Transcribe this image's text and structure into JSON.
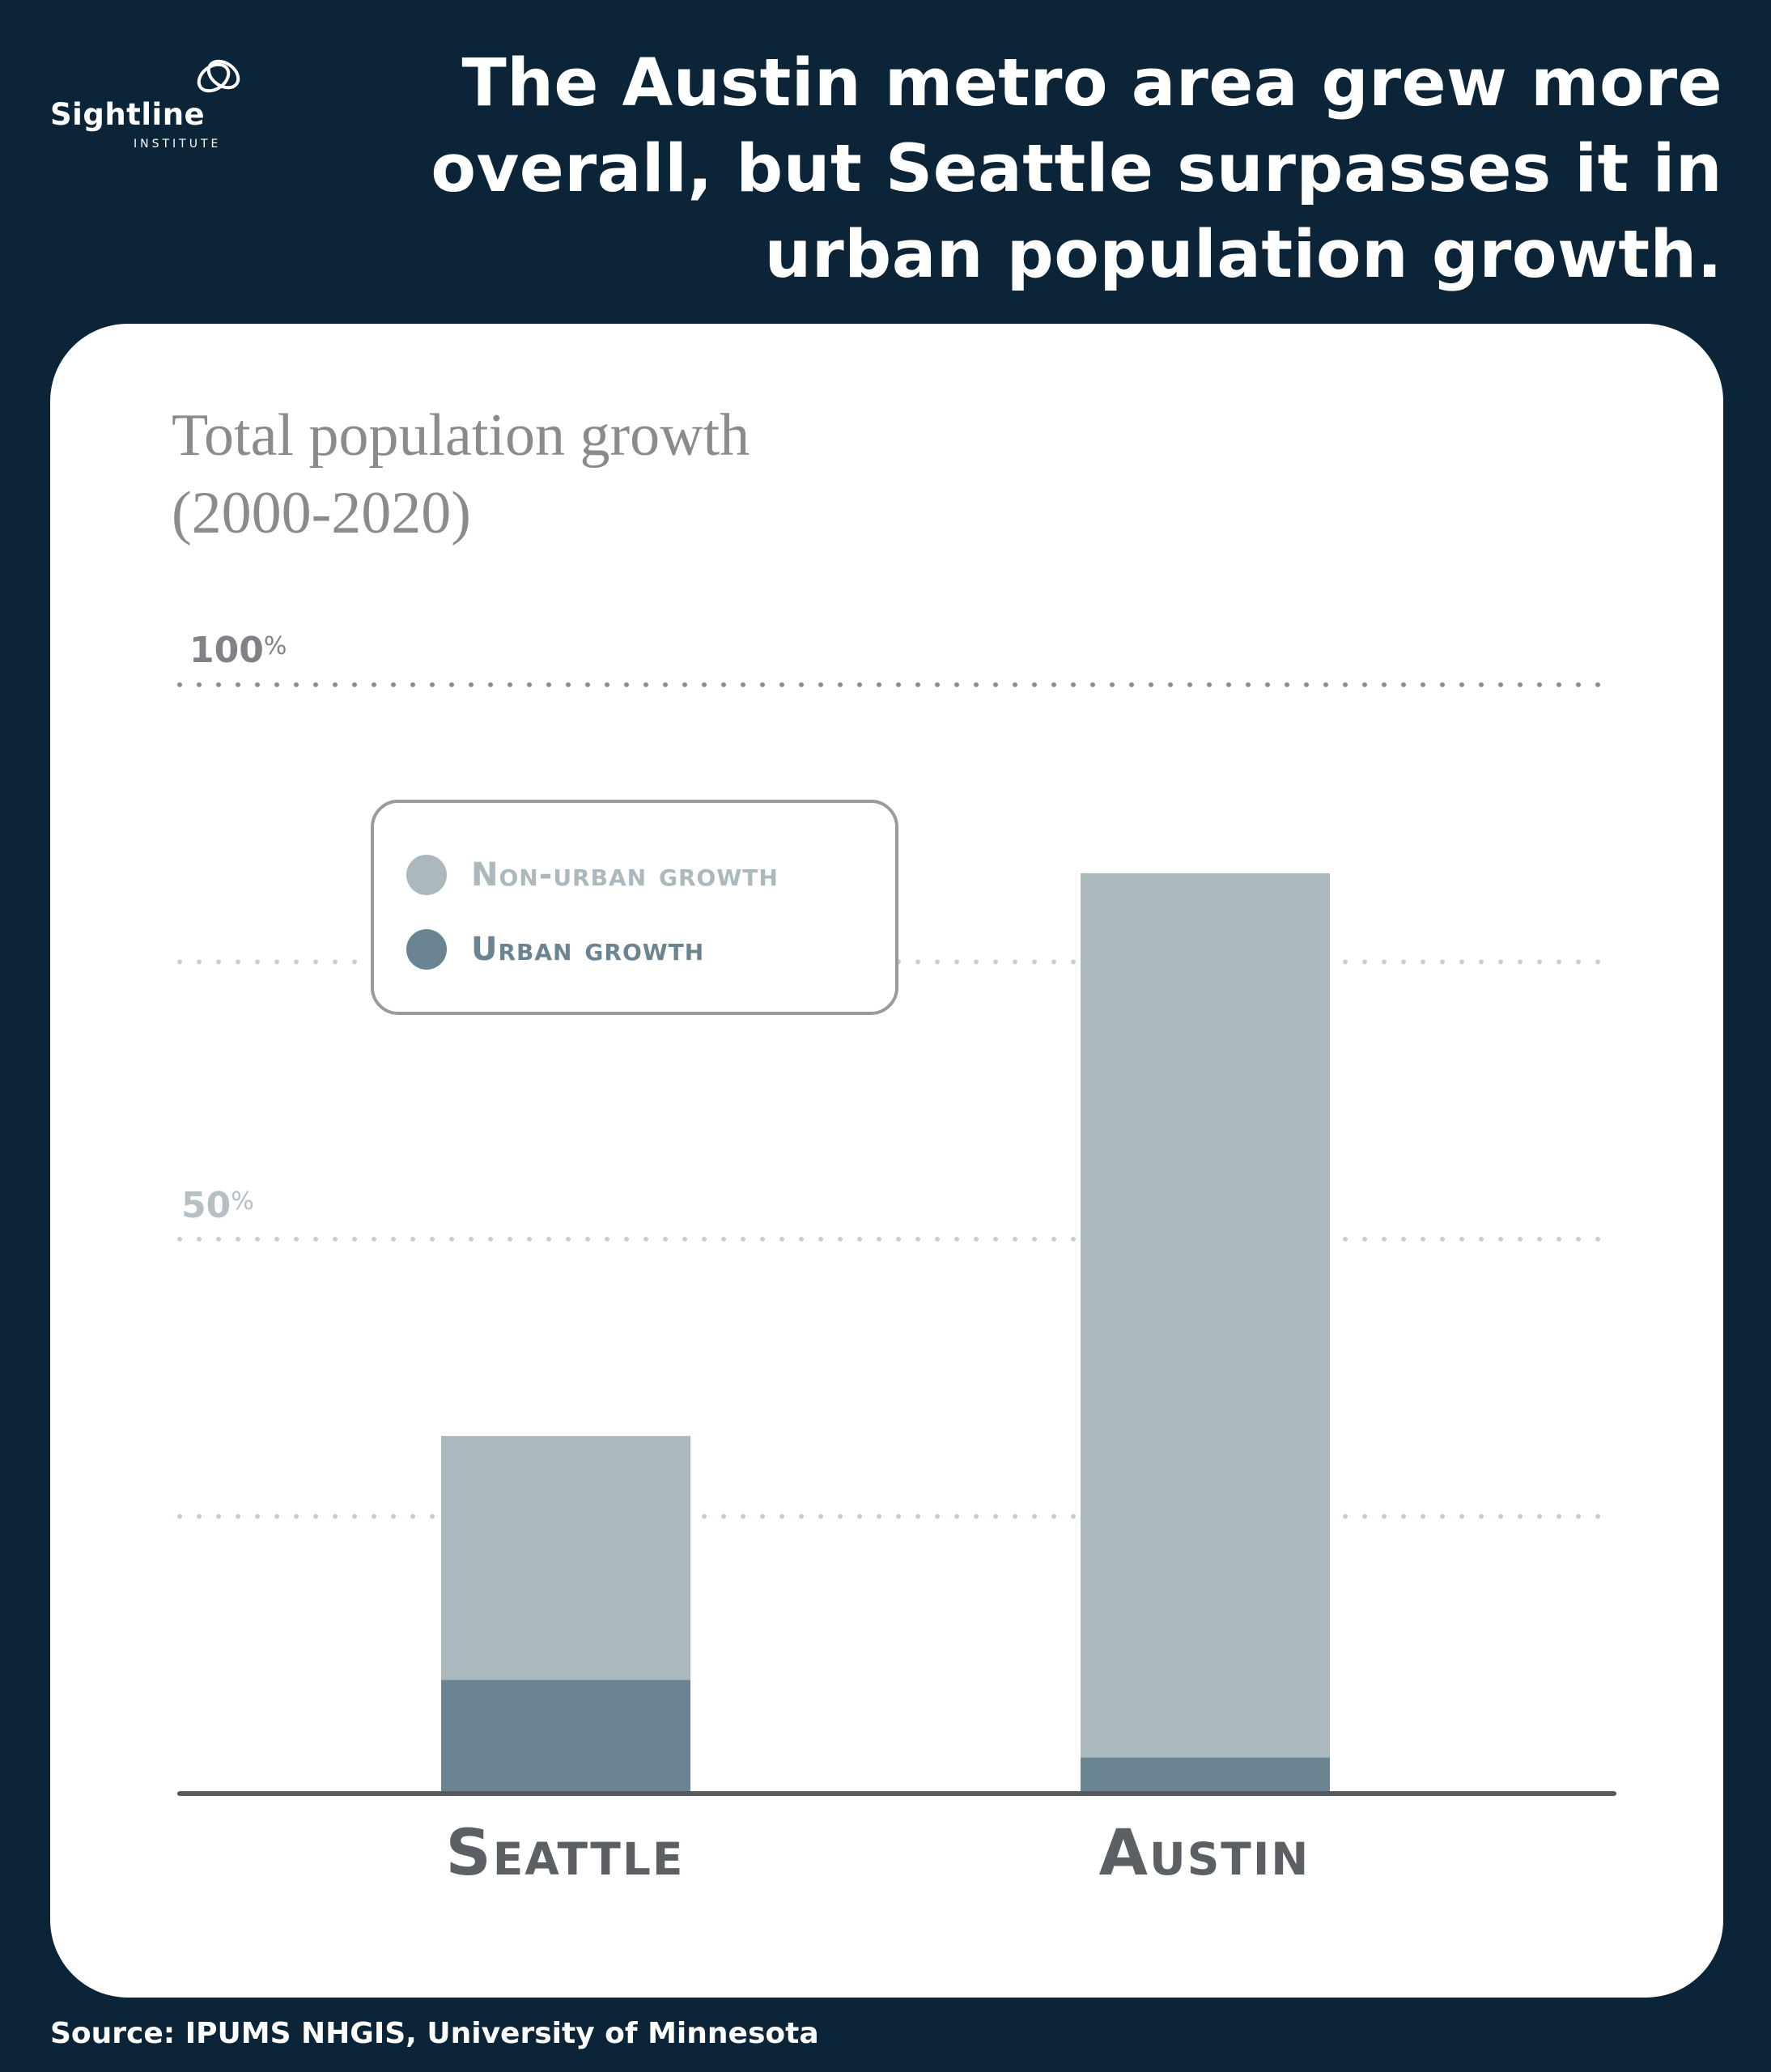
{
  "brand": {
    "logo_word": "Sightline",
    "logo_sub": "INSTITUTE"
  },
  "headline": "The Austin metro area grew more overall, but Seattle surpasses it in urban population growth.",
  "source": "Source: IPUMS NHGIS, University of Minnesota",
  "colors": {
    "background": "#0b2438",
    "card": "#ffffff",
    "non_urban": "#abb8bd",
    "urban": "#6a8492",
    "axis": "#555a5f",
    "grid": "#c8cdd0"
  },
  "chart_data": {
    "type": "bar",
    "stacked": true,
    "title": "Total population growth\n(2000-2020)",
    "categories": [
      "Seattle",
      "Austin"
    ],
    "series": [
      {
        "name": "Urban growth",
        "values": [
          20.5,
          6.5
        ]
      },
      {
        "name": "Non-urban growth",
        "values": [
          44.0,
          159.5
        ]
      }
    ],
    "ylim": [
      0,
      200
    ],
    "yticks": [
      {
        "value": 200,
        "label": "100",
        "unit": "%"
      },
      {
        "value": 100,
        "label": "50",
        "unit": "%"
      }
    ],
    "gridlines": [
      200,
      150,
      100,
      50
    ],
    "grid": true,
    "legend": {
      "placement": "top-left",
      "items": [
        {
          "label": "Non-urban growth",
          "swatch": "#abb8bd"
        },
        {
          "label": "Urban growth",
          "swatch": "#6a8492"
        }
      ]
    }
  }
}
